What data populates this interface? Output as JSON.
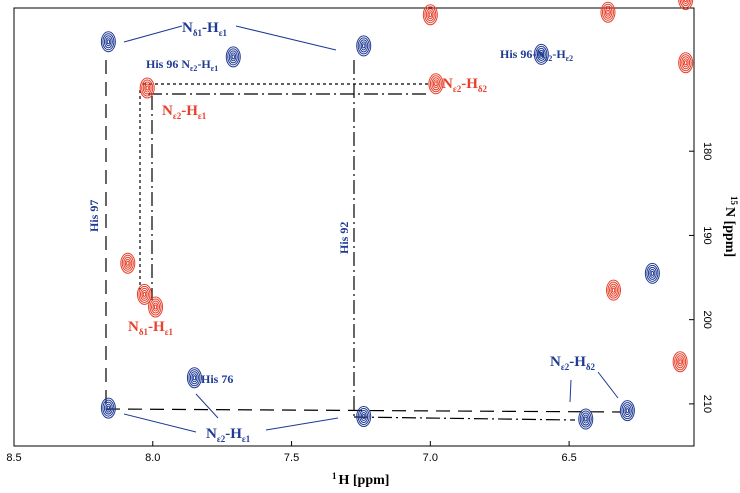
{
  "chart_data": {
    "type": "scatter",
    "subtype": "2D NMR contour spectrum",
    "xlabel_sup": "1",
    "xlabel": "H [ppm]",
    "ylabel_sup": "15",
    "ylabel": "N [ppm]",
    "xlim": [
      8.5,
      6.05
    ],
    "ylim": [
      163,
      215
    ],
    "xticks": [
      8.5,
      8.0,
      7.5,
      7.0,
      6.5
    ],
    "yticks": [
      180,
      190,
      200,
      210
    ],
    "colors": {
      "blue": "#1f3a93",
      "red": "#e8402a",
      "line": "#000000"
    },
    "peaks_blue": [
      {
        "x": 8.16,
        "y": 167.0
      },
      {
        "x": 7.24,
        "y": 167.5
      },
      {
        "x": 7.71,
        "y": 168.8
      },
      {
        "x": 6.6,
        "y": 168.5
      },
      {
        "x": 8.16,
        "y": 210.5
      },
      {
        "x": 7.24,
        "y": 211.5
      },
      {
        "x": 6.44,
        "y": 211.8
      },
      {
        "x": 6.29,
        "y": 210.8
      },
      {
        "x": 7.85,
        "y": 206.9
      },
      {
        "x": 6.2,
        "y": 194.5
      }
    ],
    "peaks_red": [
      {
        "x": 8.02,
        "y": 172.5
      },
      {
        "x": 6.98,
        "y": 172.0
      },
      {
        "x": 8.03,
        "y": 197.0
      },
      {
        "x": 7.99,
        "y": 198.5
      },
      {
        "x": 7.0,
        "y": 163.8
      },
      {
        "x": 6.36,
        "y": 163.5
      },
      {
        "x": 6.08,
        "y": 162.0
      },
      {
        "x": 6.08,
        "y": 169.5
      },
      {
        "x": 6.1,
        "y": 205.0
      },
      {
        "x": 8.09,
        "y": 193.3
      },
      {
        "x": 6.34,
        "y": 196.5
      }
    ],
    "labels": {
      "nd1_he1_top": {
        "main": "N",
        "sub1": "δ1",
        "dash": "-H",
        "sub2": "ε1"
      },
      "his96_he1": {
        "main": "His 96 N",
        "sub1": "ε2",
        "dash": "-H",
        "sub2": "ε1"
      },
      "his96_he2": {
        "main": "His 96-N",
        "sub1": "ε2",
        "dash": "-H",
        "sub2": "ε2"
      },
      "ne2_hd2_red": {
        "main": "N",
        "sub1": "ε2",
        "dash": "-H",
        "sub2": "δ2"
      },
      "ne2_he1_red": {
        "main": "N",
        "sub1": "ε2",
        "dash": "-H",
        "sub2": "ε1"
      },
      "nd1_he1_red": {
        "main": "N",
        "sub1": "δ1",
        "dash": "-H",
        "sub2": "ε1"
      },
      "ne2_hd2_blue": {
        "main": "N",
        "sub1": "ε2",
        "dash": "-H",
        "sub2": "δ2"
      },
      "ne2_he1_bottom": {
        "main": "N",
        "sub1": "ε2",
        "dash": "-H",
        "sub2": "ε1"
      },
      "his97": "His 97",
      "his92": "His 92",
      "his76": "His 76"
    }
  }
}
